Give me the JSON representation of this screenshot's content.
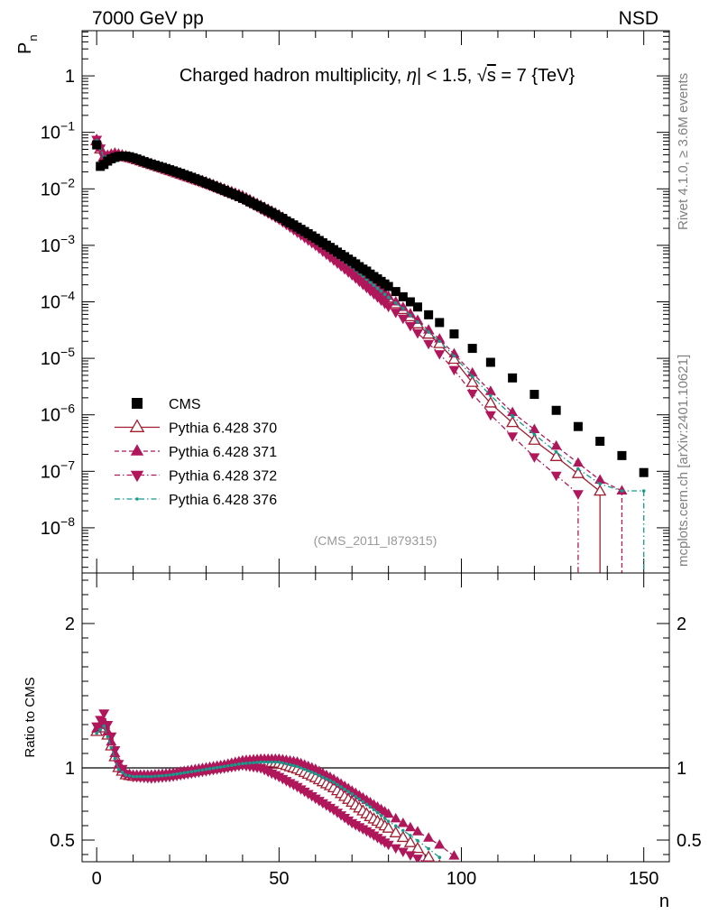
{
  "header": {
    "energy_label": "7000 GeV pp",
    "process_label": "NSD",
    "rivet_label": "Rivet 4.1.0, ≥ 3.6M events",
    "mcplots_label": "mcplots.cern.ch [arXiv:2401.10621]"
  },
  "colors": {
    "cms": "#000000",
    "p370": "#a01e30",
    "p371": "#b0175a",
    "p372": "#b0175a",
    "p376": "#169a8c",
    "ref_line": "#000000"
  },
  "chart_data": [
    {
      "type": "scatter",
      "title": "Charged hadron multiplicity, |η| < 1.5, √s = 7 {TeV}",
      "title_parts": {
        "pre": "Charged hadron multiplicity, ",
        "eta": "η",
        "mid": "| < 1.5, ",
        "sqrt": "√",
        "s": "s",
        "post": " = 7 {TeV}"
      },
      "analysis_id": "(CMS_2011_I879315)",
      "ylabel": "P",
      "ylabel_sub": "n",
      "xlabel": "n",
      "log_y": true,
      "xlim": [
        -4,
        157
      ],
      "ylim_log10": [
        -8.8,
        0.8
      ],
      "ytick_labels": [
        {
          "exp": 0,
          "base": "1",
          "sup": ""
        },
        {
          "exp": -1,
          "base": "10",
          "sup": "−1"
        },
        {
          "exp": -2,
          "base": "10",
          "sup": "−2"
        },
        {
          "exp": -3,
          "base": "10",
          "sup": "−3"
        },
        {
          "exp": -4,
          "base": "10",
          "sup": "−4"
        },
        {
          "exp": -5,
          "base": "10",
          "sup": "−5"
        },
        {
          "exp": -6,
          "base": "10",
          "sup": "−6"
        },
        {
          "exp": -7,
          "base": "10",
          "sup": "−7"
        },
        {
          "exp": -8,
          "base": "10",
          "sup": "−8"
        }
      ],
      "legend": {
        "position": "bottom-left",
        "entries": [
          "CMS",
          "Pythia 6.428 370",
          "Pythia 6.428 371",
          "Pythia 6.428 372",
          "Pythia 6.428 376"
        ]
      },
      "series": [
        {
          "name": "CMS",
          "marker": "square",
          "x": [
            0,
            1,
            2,
            3,
            4,
            5,
            6,
            7,
            8,
            9,
            10,
            11,
            12,
            13,
            14,
            15,
            16,
            17,
            18,
            19,
            20,
            21,
            22,
            23,
            24,
            25,
            26,
            27,
            28,
            29,
            30,
            31,
            32,
            33,
            34,
            35,
            36,
            37,
            38,
            39,
            40,
            41,
            42,
            43,
            44,
            45,
            46,
            47,
            48,
            49,
            50,
            51,
            52,
            53,
            54,
            55,
            56,
            57,
            58,
            59,
            60,
            61,
            62,
            63,
            64,
            65,
            66,
            67,
            68,
            69,
            70,
            71,
            72,
            73,
            74,
            75,
            76,
            77,
            78,
            79,
            80,
            82,
            84,
            86,
            88,
            91,
            94,
            98,
            103,
            108,
            114,
            120,
            126,
            132,
            138,
            144,
            150
          ],
          "y": [
            0.06,
            0.025,
            0.027,
            0.031,
            0.034,
            0.036,
            0.0375,
            0.038,
            0.0378,
            0.037,
            0.0355,
            0.0338,
            0.032,
            0.0303,
            0.0288,
            0.0274,
            0.0262,
            0.025,
            0.024,
            0.0229,
            0.0218,
            0.0208,
            0.0198,
            0.0188,
            0.0178,
            0.0169,
            0.016,
            0.0151,
            0.0143,
            0.0135,
            0.0127,
            0.012,
            0.0113,
            0.0106,
            0.01,
            0.0094,
            0.0088,
            0.0083,
            0.0078,
            0.0073,
            0.0068,
            0.0064,
            0.0059,
            0.0055,
            0.0051,
            0.0048,
            0.0044,
            0.0041,
            0.0038,
            0.0035,
            0.0032,
            0.003,
            0.0027,
            0.0025,
            0.0023,
            0.0021,
            0.00192,
            0.00176,
            0.00161,
            0.00147,
            0.00134,
            0.00122,
            0.00111,
            0.00101,
            0.00092,
            0.00084,
            0.00076,
            0.00069,
            0.00063,
            0.00057,
            0.00052,
            0.00047,
            0.00042,
            0.00038,
            0.00035,
            0.00031,
            0.00028,
            0.000255,
            0.00023,
            0.000207,
            0.000187,
            0.000152,
            0.000123,
            0.0001,
            8.1e-05,
            5.9e-05,
            4.3e-05,
            2.7e-05,
            1.5e-05,
            8.5e-06,
            4.5e-06,
            2.3e-06,
            1.2e-06,
            6.2e-07,
            3.4e-07,
            1.9e-07,
            9.5e-08
          ]
        },
        {
          "name": "Pythia 6.428 370",
          "marker": "open-triangle-up",
          "x_sample": [
            0,
            2,
            5,
            10,
            20,
            30,
            40,
            50,
            60,
            70,
            80,
            84,
            90,
            94,
            98,
            103,
            108,
            114,
            120,
            126,
            132,
            138
          ],
          "y_sample": [
            0.07,
            0.036,
            0.041,
            0.034,
            0.021,
            0.0127,
            0.0072,
            0.0033,
            0.00125,
            0.0004,
            0.000115,
            7.2e-05,
            3e-05,
            1.8e-05,
            9.5e-06,
            3.7e-06,
            1.6e-06,
            7.2e-07,
            3.5e-07,
            1.8e-07,
            9e-08,
            4.4e-08
          ]
        },
        {
          "name": "Pythia 6.428 371",
          "marker": "filled-triangle-up",
          "x_sample": [
            0,
            2,
            5,
            10,
            20,
            30,
            40,
            50,
            60,
            70,
            80,
            84,
            90,
            94,
            98,
            103,
            108,
            114,
            120,
            126,
            132,
            138,
            144
          ],
          "y_sample": [
            0.075,
            0.037,
            0.042,
            0.034,
            0.021,
            0.0128,
            0.0073,
            0.0034,
            0.0013,
            0.00043,
            0.000125,
            8e-05,
            3.6e-05,
            2.2e-05,
            1.2e-05,
            5.5e-06,
            2.6e-06,
            1.1e-06,
            5.5e-07,
            2.8e-07,
            1.4e-07,
            7e-08,
            4.5e-08
          ]
        },
        {
          "name": "Pythia 6.428 372",
          "marker": "filled-triangle-down",
          "x_sample": [
            0,
            2,
            5,
            10,
            20,
            30,
            40,
            50,
            60,
            70,
            80,
            84,
            90,
            94,
            98,
            103,
            108,
            114,
            120,
            126,
            132
          ],
          "y_sample": [
            0.075,
            0.037,
            0.041,
            0.034,
            0.0205,
            0.0122,
            0.0067,
            0.0029,
            0.001,
            0.0003,
            8.3e-05,
            5.1e-05,
            2.1e-05,
            1.2e-05,
            6.3e-06,
            2.4e-06,
            1e-06,
            4.2e-07,
            1.8e-07,
            8.5e-08,
            4e-08
          ]
        },
        {
          "name": "Pythia 6.428 376",
          "marker": "small-dot",
          "x_sample": [
            0,
            2,
            5,
            10,
            20,
            30,
            40,
            50,
            60,
            70,
            80,
            84,
            90,
            94,
            98,
            103,
            108,
            114,
            120,
            126,
            132,
            138,
            144,
            150
          ],
          "y_sample": [
            0.072,
            0.036,
            0.041,
            0.034,
            0.021,
            0.0128,
            0.0073,
            0.0033,
            0.00126,
            0.00041,
            0.00012,
            7.6e-05,
            3.3e-05,
            2e-05,
            1.1e-05,
            4.8e-06,
            2.2e-06,
            9.5e-07,
            4.5e-07,
            2.2e-07,
            1.1e-07,
            6e-08,
            4.5e-08,
            4.5e-08
          ]
        }
      ]
    },
    {
      "type": "line",
      "ylabel": "Ratio to CMS",
      "xlabel": "n",
      "xlim": [
        -4,
        157
      ],
      "ylim": [
        0.35,
        2.35
      ],
      "x_ticks": [
        0,
        50,
        100,
        150
      ],
      "y_ticks": [
        0.5,
        1,
        2
      ],
      "reference_line": 1,
      "series": [
        {
          "name": "Pythia 6.428 370",
          "x": [
            0,
            2,
            4,
            6,
            8,
            10,
            15,
            20,
            25,
            30,
            35,
            40,
            45,
            50,
            55,
            60,
            65,
            70,
            75,
            80,
            85,
            90
          ],
          "y": [
            1.25,
            1.3,
            1.15,
            1.0,
            0.95,
            0.94,
            0.94,
            0.95,
            0.97,
            0.99,
            1.01,
            1.03,
            1.04,
            1.03,
            0.99,
            0.93,
            0.86,
            0.76,
            0.66,
            0.58,
            0.5,
            0.4
          ]
        },
        {
          "name": "Pythia 6.428 371",
          "x": [
            0,
            2,
            4,
            6,
            8,
            10,
            15,
            20,
            25,
            30,
            35,
            40,
            45,
            50,
            55,
            60,
            65,
            70,
            75,
            80,
            85,
            90,
            95
          ],
          "y": [
            1.27,
            1.32,
            1.18,
            1.02,
            0.96,
            0.95,
            0.95,
            0.96,
            0.98,
            1.0,
            1.02,
            1.05,
            1.06,
            1.06,
            1.04,
            0.99,
            0.92,
            0.84,
            0.76,
            0.68,
            0.6,
            0.53,
            0.45
          ]
        },
        {
          "name": "Pythia 6.428 372",
          "x": [
            0,
            2,
            4,
            6,
            8,
            10,
            15,
            20,
            25,
            30,
            35,
            40,
            45,
            50,
            55,
            60,
            65,
            70,
            75,
            80,
            85,
            90
          ],
          "y": [
            1.29,
            1.38,
            1.22,
            1.03,
            0.96,
            0.94,
            0.93,
            0.94,
            0.96,
            0.98,
            1.0,
            1.02,
            1.0,
            0.94,
            0.87,
            0.79,
            0.71,
            0.62,
            0.55,
            0.47,
            0.41,
            0.35
          ]
        },
        {
          "name": "Pythia 6.428 376",
          "x": [
            0,
            2,
            4,
            6,
            8,
            10,
            15,
            20,
            25,
            30,
            35,
            40,
            45,
            50,
            55,
            60,
            65,
            70,
            75,
            80,
            85,
            90
          ],
          "y": [
            1.24,
            1.29,
            1.14,
            0.99,
            0.95,
            0.94,
            0.94,
            0.95,
            0.97,
            0.99,
            1.01,
            1.03,
            1.04,
            1.04,
            1.01,
            0.96,
            0.9,
            0.82,
            0.73,
            0.63,
            0.55,
            0.46
          ]
        }
      ]
    }
  ]
}
